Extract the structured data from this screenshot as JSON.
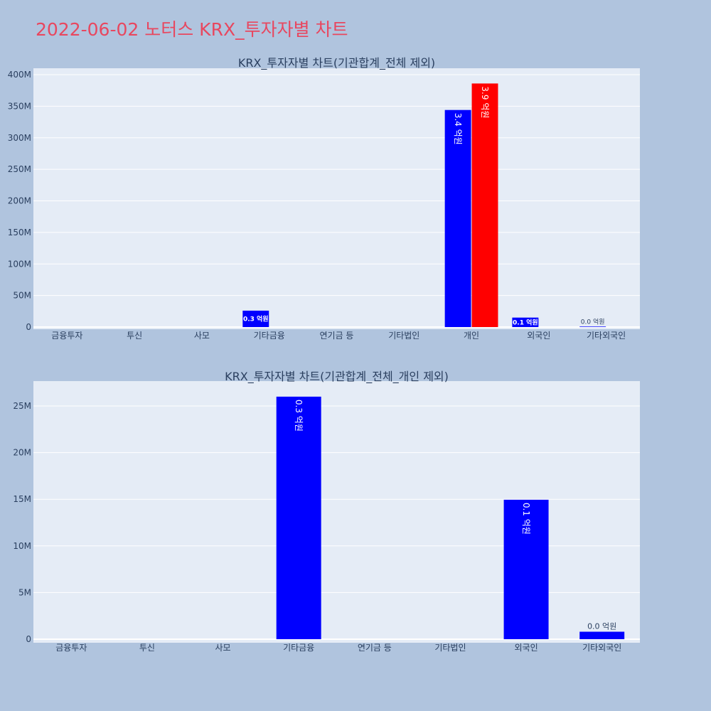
{
  "page": {
    "title": "2022-06-02 노터스 KRX_투자자별 차트",
    "background": "#b0c4de",
    "title_color": "#e8475f",
    "plot_background": "#e5ecf6"
  },
  "chart_data": [
    {
      "type": "bar",
      "title": "KRX_투자자별 차트(기관합계_전체 제외)",
      "categories": [
        "금융투자",
        "투신",
        "사모",
        "기타금융",
        "연기금 등",
        "기타법인",
        "개인",
        "외국인",
        "기타외국인"
      ],
      "series": [
        {
          "color": "#0000ff",
          "values": [
            0,
            0,
            0,
            26000000,
            0,
            0,
            344000000,
            15000000,
            800000
          ],
          "labels": [
            "",
            "",
            "",
            "0.3 억원",
            "",
            "",
            "3.4 억원",
            "0.1 억원",
            "0.0 억원"
          ]
        },
        {
          "color": "#ff0000",
          "values": [
            0,
            0,
            0,
            0,
            0,
            0,
            386000000,
            0,
            0
          ],
          "labels": [
            "",
            "",
            "",
            "",
            "",
            "",
            "3.9 억원",
            "",
            ""
          ]
        }
      ],
      "ylim": [
        0,
        405000000
      ],
      "yticks": [
        0,
        50000000,
        100000000,
        150000000,
        200000000,
        250000000,
        300000000,
        350000000,
        400000000
      ],
      "ytick_labels": [
        "0",
        "50M",
        "100M",
        "150M",
        "200M",
        "250M",
        "300M",
        "350M",
        "400M"
      ],
      "grid": true
    },
    {
      "type": "bar",
      "title": "KRX_투자자별 차트(기관합계_전체_개인 제외)",
      "categories": [
        "금융투자",
        "투신",
        "사모",
        "기타금융",
        "연기금 등",
        "기타법인",
        "외국인",
        "기타외국인"
      ],
      "series": [
        {
          "color": "#0000ff",
          "values": [
            0,
            0,
            0,
            26000000,
            0,
            0,
            14950000,
            800000
          ],
          "labels": [
            "",
            "",
            "",
            "0.3 억원",
            "",
            "",
            "0.1 억원",
            "0.0 억원"
          ]
        }
      ],
      "ylim": [
        0,
        27500000
      ],
      "yticks": [
        0,
        5000000,
        10000000,
        15000000,
        20000000,
        25000000
      ],
      "ytick_labels": [
        "0",
        "5M",
        "10M",
        "15M",
        "20M",
        "25M"
      ],
      "grid": true
    }
  ]
}
